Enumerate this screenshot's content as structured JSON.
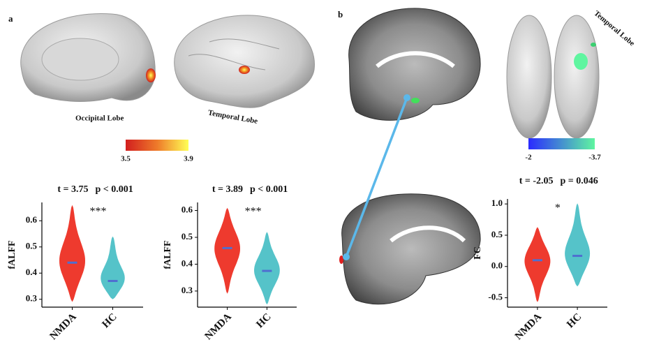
{
  "panel_labels": [
    "a",
    "b"
  ],
  "brain_labels": [
    "Occipital Lobe",
    "Temporal Lobe",
    "Temporal Lobe"
  ],
  "colorbars": [
    {
      "ticks": [
        3.5,
        3.9
      ],
      "colors": [
        "#d21f1f",
        "#ee7a2a",
        "#ffff55"
      ]
    },
    {
      "ticks": [
        -2,
        -3.7
      ],
      "colors": [
        "#2a2aff",
        "#5ff5a0"
      ]
    }
  ],
  "chart_data": [
    {
      "type": "violin",
      "t_stat": "t = 3.75",
      "p_stat": "p < 0.001",
      "annotation": "***",
      "ylabel": "fALFF",
      "categories": [
        "NMDA",
        "HC"
      ],
      "colors": [
        "#ee3a2e",
        "#55c3c9"
      ],
      "median_color": "#4f6fd0",
      "min": [
        0.29,
        0.3
      ],
      "median": [
        0.44,
        0.37
      ],
      "max": [
        0.66,
        0.54
      ],
      "ylim": [
        0.27,
        0.67
      ],
      "yticks": [
        0.3,
        0.4,
        0.5,
        0.6
      ]
    },
    {
      "type": "violin",
      "t_stat": "t = 3.89",
      "p_stat": "p < 0.001",
      "annotation": "***",
      "ylabel": "fALFF",
      "categories": [
        "NMDA",
        "HC"
      ],
      "colors": [
        "#ee3a2e",
        "#55c3c9"
      ],
      "median_color": "#4f6fd0",
      "min": [
        0.29,
        0.25
      ],
      "median": [
        0.46,
        0.375
      ],
      "max": [
        0.61,
        0.52
      ],
      "ylim": [
        0.24,
        0.63
      ],
      "yticks": [
        0.3,
        0.4,
        0.5,
        0.6
      ]
    },
    {
      "type": "violin",
      "t_stat": "t = -2.05",
      "p_stat": "p = 0.046",
      "annotation": "*",
      "ylabel": "FC",
      "categories": [
        "NMDA",
        "HC"
      ],
      "colors": [
        "#ee3a2e",
        "#55c3c9"
      ],
      "median_color": "#4f6fd0",
      "min": [
        -0.57,
        -0.32
      ],
      "median": [
        0.1,
        0.17
      ],
      "max": [
        0.63,
        1.01
      ],
      "ylim": [
        -0.65,
        1.08
      ],
      "yticks": [
        -0.5,
        {
          "value": 0,
          "label": "0.0"
        },
        0.5,
        {
          "value": 1,
          "label": "1.0"
        }
      ]
    }
  ]
}
